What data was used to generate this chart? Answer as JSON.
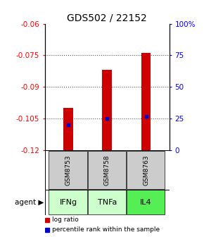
{
  "title": "GDS502 / 22152",
  "samples": [
    "GSM8753",
    "GSM8758",
    "GSM8763"
  ],
  "agents": [
    "IFNg",
    "TNFa",
    "IL4"
  ],
  "log_ratios": [
    -0.1,
    -0.082,
    -0.074
  ],
  "percentile_ranks": [
    -0.108,
    -0.105,
    -0.104
  ],
  "ylim_left": [
    -0.12,
    -0.06
  ],
  "yticks_left": [
    -0.12,
    -0.105,
    -0.09,
    -0.075,
    -0.06
  ],
  "ytick_labels_left": [
    "-0.12",
    "-0.105",
    "-0.09",
    "-0.075",
    "-0.06"
  ],
  "ylim_right": [
    0,
    100
  ],
  "yticks_right": [
    0,
    25,
    50,
    75,
    100
  ],
  "ytick_labels_right": [
    "0",
    "25",
    "50",
    "75",
    "100%"
  ],
  "bar_color": "#cc0000",
  "dot_color": "#0000cc",
  "agent_colors": [
    "#ccffcc",
    "#ccffcc",
    "#55ee55"
  ],
  "sample_bg": "#cccccc",
  "grid_color": "#555555",
  "title_fontsize": 10,
  "tick_fontsize": 7.5,
  "bar_width": 0.25
}
